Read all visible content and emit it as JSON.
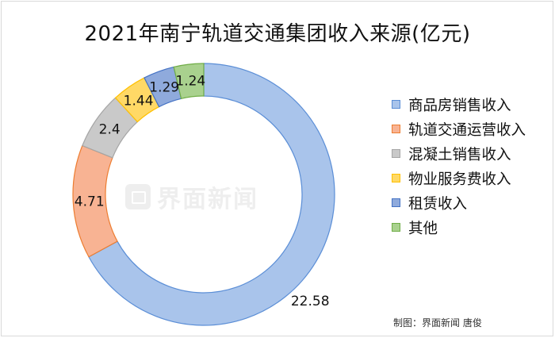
{
  "chart_data": {
    "type": "pie",
    "variant": "donut",
    "title": "2021年南宁轨道交通集团收入来源(亿元)",
    "categories": [
      "商品房销售收入",
      "轨道交通运营收入",
      "混凝土销售收入",
      "物业服务费收入",
      "租赁收入",
      "其他"
    ],
    "values": [
      22.58,
      4.71,
      2.4,
      1.44,
      1.29,
      1.24
    ],
    "data_labels": [
      "22.58",
      "4.71",
      "2.4",
      "1.44",
      "1.29",
      "1.24"
    ],
    "colors": [
      "#a9c4eb",
      "#f8b393",
      "#c9c9c9",
      "#ffd966",
      "#8faadc",
      "#a9d18e"
    ],
    "border_colors": [
      "#5b8ed6",
      "#ed7d31",
      "#a5a5a5",
      "#ffc000",
      "#4472c4",
      "#70ad47"
    ],
    "legend_position": "right",
    "start_angle": "12 o'clock, clockwise"
  },
  "watermark": {
    "text": "界面新闻"
  },
  "credit": "制图：界面新闻 唐俊"
}
